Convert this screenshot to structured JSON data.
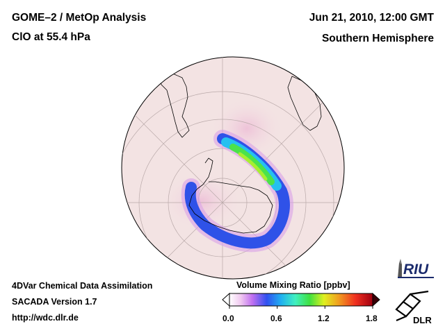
{
  "header": {
    "title_line1": "GOME–2 / MetOp Analysis",
    "title_line2": "ClO at 55.4 hPa",
    "date": "Jun 21, 2010, 12:00 GMT",
    "region": "Southern Hemisphere"
  },
  "footer": {
    "line1": "4DVar Chemical Data Assimilation",
    "line2": "SACADA Version 1.7",
    "url": "http://wdc.dlr.de"
  },
  "colorbar": {
    "title": "Volume Mixing Ratio [ppbv]",
    "ticks": [
      "0.0",
      "0.6",
      "1.2",
      "1.8"
    ],
    "colors": [
      "#ffffff",
      "#f0c8f0",
      "#c070f0",
      "#3050f0",
      "#20b0f0",
      "#40f0c0",
      "#40e040",
      "#e0f020",
      "#f0a020",
      "#f03020",
      "#a00010"
    ]
  },
  "logos": {
    "riu": "RIU",
    "dlr": "DLR"
  },
  "map": {
    "projection": "orthographic",
    "center": "South Pole",
    "field_color_min": "#f5e4e4",
    "field_color_max": "#e06080"
  }
}
